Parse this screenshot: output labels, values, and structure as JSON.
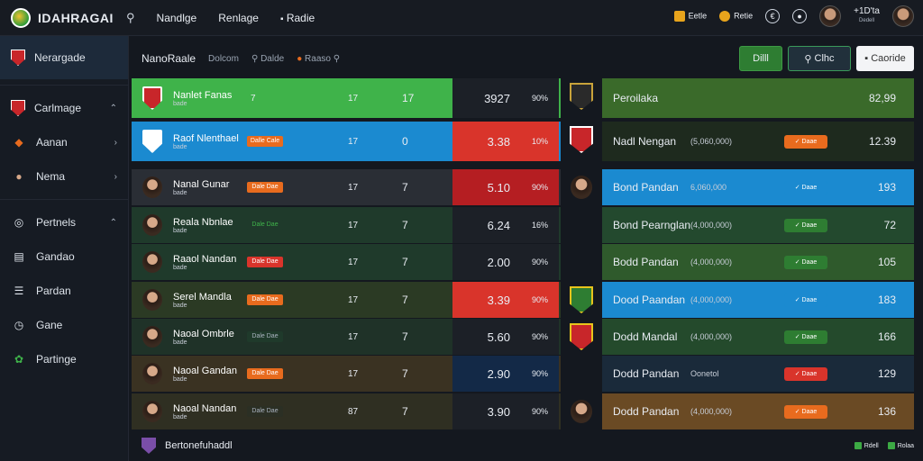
{
  "app": {
    "title": "IDAHRAGAI"
  },
  "topnav": [
    {
      "label": "Nandlge"
    },
    {
      "label": "Renlage"
    },
    {
      "label": "Radie"
    }
  ],
  "topright": {
    "item1": "Eetle",
    "item2": "Retie",
    "item3": "+1D'ta",
    "item3_sub": "Dedell"
  },
  "sidebar": {
    "items": [
      {
        "label": "Nerargade"
      },
      {
        "label": "Carlmage"
      },
      {
        "label": "Aanan"
      },
      {
        "label": "Nema"
      },
      {
        "label": "Pertnels"
      },
      {
        "label": "Gandao"
      },
      {
        "label": "Pardan"
      },
      {
        "label": "Gane"
      },
      {
        "label": "Partinge"
      }
    ]
  },
  "subheader": {
    "title": "NanoRaale",
    "sub1": "Dolcom",
    "sub2": "Dalde",
    "sub3": "Raaso"
  },
  "actions": {
    "btn1": "Dilll",
    "btn2": "Clhc",
    "btn3": "Caoride"
  },
  "left_rows": [
    {
      "name": "Nanlet Fanas",
      "sub": "bade",
      "tag": "",
      "c1": "7",
      "c2": "17",
      "c3": "17",
      "score": "3927",
      "pct": "90%"
    },
    {
      "name": "Raof Nlenthael",
      "sub": "bade",
      "tag": "Dalle Cale",
      "c1": "",
      "c2": "17",
      "c3": "0",
      "score": "3.38",
      "pct": "10%"
    },
    {
      "name": "Nanal Gunar",
      "sub": "bade",
      "tag": "Dale Dae",
      "c1": "",
      "c2": "17",
      "c3": "7",
      "score": "5.10",
      "pct": "90%"
    },
    {
      "name": "Reala Nbnlae",
      "sub": "bade",
      "tag": "Dale Dae",
      "c1": "",
      "c2": "17",
      "c3": "7",
      "score": "6.24",
      "pct": "16%"
    },
    {
      "name": "Raaol Nandan",
      "sub": "bade",
      "tag": "Dale Dae",
      "c1": "",
      "c2": "17",
      "c3": "7",
      "score": "2.00",
      "pct": "90%"
    },
    {
      "name": "Serel Mandla",
      "sub": "bade",
      "tag": "Dale Dae",
      "c1": "",
      "c2": "17",
      "c3": "7",
      "score": "3.39",
      "pct": "90%"
    },
    {
      "name": "Naoal Ombrle",
      "sub": "bade",
      "tag": "Dale Dae",
      "c1": "",
      "c2": "17",
      "c3": "7",
      "score": "5.60",
      "pct": "90%"
    },
    {
      "name": "Naoal Gandan",
      "sub": "bade",
      "tag": "Dale Dae",
      "c1": "",
      "c2": "17",
      "c3": "7",
      "score": "2.90",
      "pct": "90%"
    },
    {
      "name": "Naoal Nandan",
      "sub": "bade",
      "tag": "Dale Dae",
      "c1": "",
      "c2": "87",
      "c3": "7",
      "score": "3.90",
      "pct": "90%"
    }
  ],
  "right_rows": [
    {
      "name": "Peroilaka",
      "sub": "",
      "tag": "",
      "value": "82,99"
    },
    {
      "name": "Nadl Nengan",
      "sub": "(5,060,000)",
      "tag": "Daae",
      "value": "12.39"
    },
    {
      "name": "Bond Pandan",
      "sub": "6,060,000",
      "tag": "Daae",
      "value": "193"
    },
    {
      "name": "Bond Pearnglan",
      "sub": "(4,000,000)",
      "tag": "Daae",
      "value": "72"
    },
    {
      "name": "Bodd Pandan",
      "sub": "(4,000,000)",
      "tag": "Daae",
      "value": "105"
    },
    {
      "name": "Dood Paandan",
      "sub": "(4,000,000)",
      "tag": "Daae",
      "value": "183"
    },
    {
      "name": "Dodd Mandal",
      "sub": "(4,000,000)",
      "tag": "Daae",
      "value": "166"
    },
    {
      "name": "Dodd Pandan",
      "sub": "Oonetol",
      "tag": "Daae",
      "value": "129"
    },
    {
      "name": "Dodd Pandan",
      "sub": "(4,000,000)",
      "tag": "Daae",
      "value": "136"
    }
  ],
  "bottom": {
    "label": "Bertonefuhaddl",
    "r1": "Rdell",
    "r2": "Rolaa"
  },
  "colors": {
    "green": "#3fb34a",
    "blue": "#1b8ad0",
    "red": "#d9342b",
    "orange": "#e86b1e"
  }
}
